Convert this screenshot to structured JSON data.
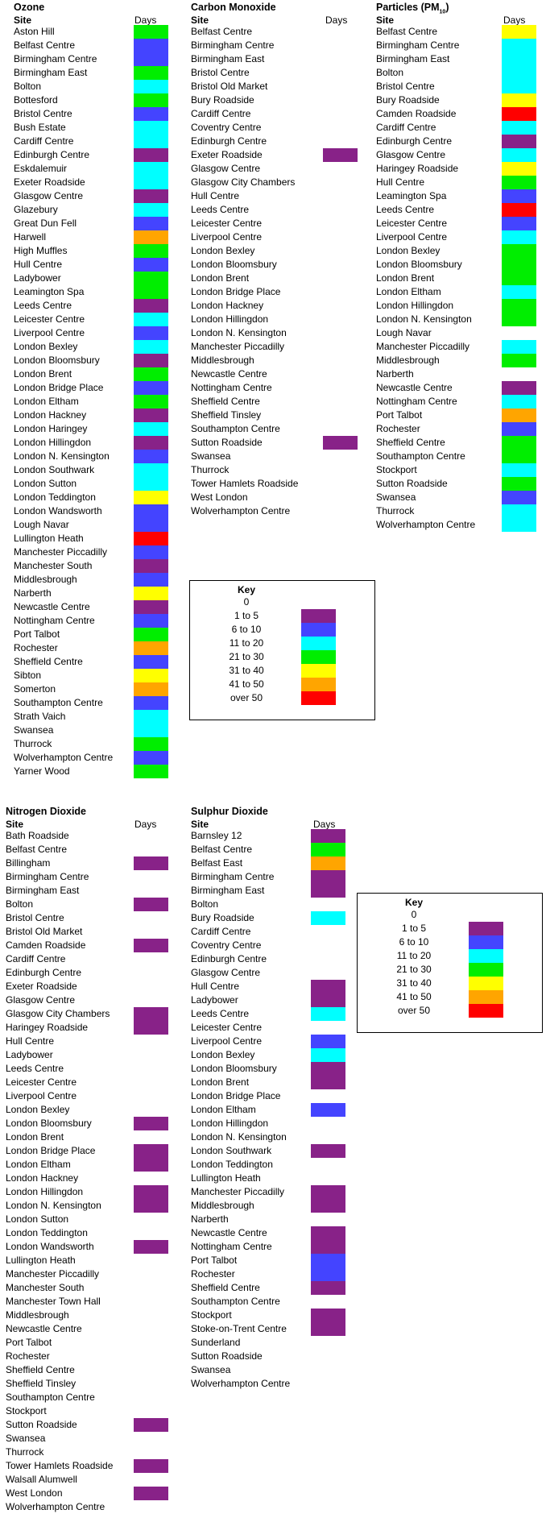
{
  "colors": {
    "0": "#ffffff",
    "1": "#882288",
    "2": "#4444ff",
    "3": "#00ffff",
    "4": "#00ee00",
    "5": "#ffff00",
    "6": "#ffa500",
    "7": "#ff0000"
  },
  "key": {
    "title": "Key",
    "items": [
      {
        "label": "0",
        "level": 0
      },
      {
        "label": "1 to 5",
        "level": 1
      },
      {
        "label": "6 to 10",
        "level": 2
      },
      {
        "label": "11 to 20",
        "level": 3
      },
      {
        "label": "21 to 30",
        "level": 4
      },
      {
        "label": "31 to 40",
        "level": 5
      },
      {
        "label": "41 to 50",
        "level": 6
      },
      {
        "label": "over 50",
        "level": 7
      }
    ]
  },
  "ozone": {
    "title": "Ozone",
    "site_header": "Site",
    "days_header": "Days",
    "rows": [
      {
        "site": "Aston Hill",
        "level": 4
      },
      {
        "site": "Belfast Centre",
        "level": 2
      },
      {
        "site": "Birmingham Centre",
        "level": 2
      },
      {
        "site": "Birmingham East",
        "level": 4
      },
      {
        "site": "Bolton",
        "level": 3
      },
      {
        "site": "Bottesford",
        "level": 4
      },
      {
        "site": "Bristol Centre",
        "level": 2
      },
      {
        "site": "Bush Estate",
        "level": 3
      },
      {
        "site": "Cardiff Centre",
        "level": 3
      },
      {
        "site": "Edinburgh Centre",
        "level": 1
      },
      {
        "site": "Eskdalemuir",
        "level": 3
      },
      {
        "site": "Exeter Roadside",
        "level": 3
      },
      {
        "site": "Glasgow Centre",
        "level": 1
      },
      {
        "site": "Glazebury",
        "level": 3
      },
      {
        "site": "Great Dun Fell",
        "level": 2
      },
      {
        "site": "Harwell",
        "level": 6
      },
      {
        "site": "High Muffles",
        "level": 4
      },
      {
        "site": "Hull Centre",
        "level": 2
      },
      {
        "site": "Ladybower",
        "level": 4
      },
      {
        "site": "Leamington Spa",
        "level": 4
      },
      {
        "site": "Leeds Centre",
        "level": 1
      },
      {
        "site": "Leicester Centre",
        "level": 3
      },
      {
        "site": "Liverpool Centre",
        "level": 2
      },
      {
        "site": "London Bexley",
        "level": 3
      },
      {
        "site": "London Bloomsbury",
        "level": 1
      },
      {
        "site": "London Brent",
        "level": 4
      },
      {
        "site": "London Bridge Place",
        "level": 2
      },
      {
        "site": "London Eltham",
        "level": 4
      },
      {
        "site": "London Hackney",
        "level": 1
      },
      {
        "site": "London Haringey",
        "level": 3
      },
      {
        "site": "London Hillingdon",
        "level": 1
      },
      {
        "site": "London N. Kensington",
        "level": 2
      },
      {
        "site": "London Southwark",
        "level": 3
      },
      {
        "site": "London Sutton",
        "level": 3
      },
      {
        "site": "London Teddington",
        "level": 5
      },
      {
        "site": "London Wandsworth",
        "level": 2
      },
      {
        "site": "Lough Navar",
        "level": 2
      },
      {
        "site": "Lullington Heath",
        "level": 7
      },
      {
        "site": "Manchester Piccadilly",
        "level": 2
      },
      {
        "site": "Manchester South",
        "level": 1
      },
      {
        "site": "Middlesbrough",
        "level": 2
      },
      {
        "site": "Narberth",
        "level": 5
      },
      {
        "site": "Newcastle Centre",
        "level": 1
      },
      {
        "site": "Nottingham Centre",
        "level": 2
      },
      {
        "site": "Port Talbot",
        "level": 4
      },
      {
        "site": "Rochester",
        "level": 6
      },
      {
        "site": "Sheffield Centre",
        "level": 2
      },
      {
        "site": "Sibton",
        "level": 5
      },
      {
        "site": "Somerton",
        "level": 6
      },
      {
        "site": "Southampton Centre",
        "level": 2
      },
      {
        "site": "Strath Vaich",
        "level": 3
      },
      {
        "site": "Swansea",
        "level": 3
      },
      {
        "site": "Thurrock",
        "level": 4
      },
      {
        "site": "Wolverhampton Centre",
        "level": 2
      },
      {
        "site": "Yarner Wood",
        "level": 4
      }
    ]
  },
  "carbon_monoxide": {
    "title": "Carbon Monoxide",
    "site_header": "Site",
    "days_header": "Days",
    "rows": [
      {
        "site": "Belfast Centre",
        "level": 0
      },
      {
        "site": "Birmingham Centre",
        "level": 0
      },
      {
        "site": "Birmingham East",
        "level": 0
      },
      {
        "site": "Bristol Centre",
        "level": 0
      },
      {
        "site": "Bristol Old Market",
        "level": 0
      },
      {
        "site": "Bury Roadside",
        "level": 0
      },
      {
        "site": "Cardiff Centre",
        "level": 0
      },
      {
        "site": "Coventry Centre",
        "level": 0
      },
      {
        "site": "Edinburgh Centre",
        "level": 0
      },
      {
        "site": "Exeter Roadside",
        "level": 1
      },
      {
        "site": "Glasgow Centre",
        "level": 0
      },
      {
        "site": "Glasgow City Chambers",
        "level": 0
      },
      {
        "site": "Hull Centre",
        "level": 0
      },
      {
        "site": "Leeds Centre",
        "level": 0
      },
      {
        "site": "Leicester Centre",
        "level": 0
      },
      {
        "site": "Liverpool Centre",
        "level": 0
      },
      {
        "site": "London Bexley",
        "level": 0
      },
      {
        "site": "London Bloomsbury",
        "level": 0
      },
      {
        "site": "London Brent",
        "level": 0
      },
      {
        "site": "London Bridge Place",
        "level": 0
      },
      {
        "site": "London Hackney",
        "level": 0
      },
      {
        "site": "London Hillingdon",
        "level": 0
      },
      {
        "site": "London N. Kensington",
        "level": 0
      },
      {
        "site": "Manchester Piccadilly",
        "level": 0
      },
      {
        "site": "Middlesbrough",
        "level": 0
      },
      {
        "site": "Newcastle Centre",
        "level": 0
      },
      {
        "site": "Nottingham Centre",
        "level": 0
      },
      {
        "site": "Sheffield Centre",
        "level": 0
      },
      {
        "site": "Sheffield Tinsley",
        "level": 0
      },
      {
        "site": "Southampton Centre",
        "level": 0
      },
      {
        "site": "Sutton Roadside",
        "level": 1
      },
      {
        "site": "Swansea",
        "level": 0
      },
      {
        "site": "Thurrock",
        "level": 0
      },
      {
        "site": "Tower Hamlets Roadside",
        "level": 0
      },
      {
        "site": "West London",
        "level": 0
      },
      {
        "site": "Wolverhampton Centre",
        "level": 0
      }
    ]
  },
  "particles": {
    "title_main": "Particles  (PM",
    "title_sub": "10",
    "title_end": ")",
    "site_header": "Site",
    "days_header": "Days",
    "rows": [
      {
        "site": "Belfast Centre",
        "level": 5
      },
      {
        "site": "Birmingham Centre",
        "level": 3
      },
      {
        "site": "Birmingham East",
        "level": 3
      },
      {
        "site": "Bolton",
        "level": 3
      },
      {
        "site": "Bristol Centre",
        "level": 3
      },
      {
        "site": "Bury Roadside",
        "level": 5
      },
      {
        "site": "Camden Roadside",
        "level": 7
      },
      {
        "site": "Cardiff Centre",
        "level": 3
      },
      {
        "site": "Edinburgh Centre",
        "level": 1
      },
      {
        "site": "Glasgow Centre",
        "level": 3
      },
      {
        "site": "Haringey Roadside",
        "level": 5
      },
      {
        "site": "Hull Centre",
        "level": 4
      },
      {
        "site": "Leamington Spa",
        "level": 2
      },
      {
        "site": "Leeds Centre",
        "level": 7
      },
      {
        "site": "Leicester Centre",
        "level": 2
      },
      {
        "site": "Liverpool Centre",
        "level": 3
      },
      {
        "site": "London Bexley",
        "level": 4
      },
      {
        "site": "London Bloomsbury",
        "level": 4
      },
      {
        "site": "London Brent",
        "level": 4
      },
      {
        "site": "London Eltham",
        "level": 3
      },
      {
        "site": "London Hillingdon",
        "level": 4
      },
      {
        "site": "London N. Kensington",
        "level": 4
      },
      {
        "site": "Lough Navar",
        "level": 0
      },
      {
        "site": "Manchester Piccadilly",
        "level": 3
      },
      {
        "site": "Middlesbrough",
        "level": 4
      },
      {
        "site": "Narberth",
        "level": 0
      },
      {
        "site": "Newcastle Centre",
        "level": 1
      },
      {
        "site": "Nottingham Centre",
        "level": 3
      },
      {
        "site": "Port Talbot",
        "level": 6
      },
      {
        "site": "Rochester",
        "level": 2
      },
      {
        "site": "Sheffield Centre",
        "level": 4
      },
      {
        "site": "Southampton Centre",
        "level": 4
      },
      {
        "site": "Stockport",
        "level": 3
      },
      {
        "site": "Sutton Roadside",
        "level": 4
      },
      {
        "site": "Swansea",
        "level": 2
      },
      {
        "site": "Thurrock",
        "level": 3
      },
      {
        "site": "Wolverhampton Centre",
        "level": 3
      }
    ]
  },
  "nitrogen_dioxide": {
    "title": "Nitrogen Dioxide",
    "site_header": "Site",
    "days_header": "Days",
    "rows": [
      {
        "site": "Bath Roadside",
        "level": 0
      },
      {
        "site": "Belfast Centre",
        "level": 0
      },
      {
        "site": "Billingham",
        "level": 1
      },
      {
        "site": "Birmingham Centre",
        "level": 0
      },
      {
        "site": "Birmingham East",
        "level": 0
      },
      {
        "site": "Bolton",
        "level": 1
      },
      {
        "site": "Bristol Centre",
        "level": 0
      },
      {
        "site": "Bristol Old Market",
        "level": 0
      },
      {
        "site": "Camden Roadside",
        "level": 1
      },
      {
        "site": "Cardiff Centre",
        "level": 0
      },
      {
        "site": "Edinburgh Centre",
        "level": 0
      },
      {
        "site": "Exeter Roadside",
        "level": 0
      },
      {
        "site": "Glasgow Centre",
        "level": 0
      },
      {
        "site": "Glasgow City Chambers",
        "level": 1
      },
      {
        "site": "Haringey Roadside",
        "level": 1
      },
      {
        "site": "Hull Centre",
        "level": 0
      },
      {
        "site": "Ladybower",
        "level": 0
      },
      {
        "site": "Leeds Centre",
        "level": 0
      },
      {
        "site": "Leicester Centre",
        "level": 0
      },
      {
        "site": "Liverpool Centre",
        "level": 0
      },
      {
        "site": "London Bexley",
        "level": 0
      },
      {
        "site": "London Bloomsbury",
        "level": 1
      },
      {
        "site": "London Brent",
        "level": 0
      },
      {
        "site": "London Bridge Place",
        "level": 1
      },
      {
        "site": "London Eltham",
        "level": 1
      },
      {
        "site": "London Hackney",
        "level": 0
      },
      {
        "site": "London Hillingdon",
        "level": 1
      },
      {
        "site": "London N. Kensington",
        "level": 1
      },
      {
        "site": "London Sutton",
        "level": 0
      },
      {
        "site": "London Teddington",
        "level": 0
      },
      {
        "site": "London Wandsworth",
        "level": 1
      },
      {
        "site": "Lullington Heath",
        "level": 0
      },
      {
        "site": "Manchester Piccadilly",
        "level": 0
      },
      {
        "site": "Manchester South",
        "level": 0
      },
      {
        "site": "Manchester Town Hall",
        "level": 0
      },
      {
        "site": "Middlesbrough",
        "level": 0
      },
      {
        "site": "Newcastle Centre",
        "level": 0
      },
      {
        "site": "Port Talbot",
        "level": 0
      },
      {
        "site": "Rochester",
        "level": 0
      },
      {
        "site": "Sheffield Centre",
        "level": 0
      },
      {
        "site": "Sheffield Tinsley",
        "level": 0
      },
      {
        "site": "Southampton Centre",
        "level": 0
      },
      {
        "site": "Stockport",
        "level": 0
      },
      {
        "site": "Sutton Roadside",
        "level": 1
      },
      {
        "site": "Swansea",
        "level": 0
      },
      {
        "site": "Thurrock",
        "level": 0
      },
      {
        "site": "Tower Hamlets Roadside",
        "level": 1
      },
      {
        "site": "Walsall Alumwell",
        "level": 0
      },
      {
        "site": "West London",
        "level": 1
      },
      {
        "site": "Wolverhampton Centre",
        "level": 0
      }
    ]
  },
  "sulphur_dioxide": {
    "title": "Sulphur Dioxide",
    "site_header": "Site",
    "days_header": "Days",
    "rows": [
      {
        "site": "Barnsley 12",
        "level": 1
      },
      {
        "site": "Belfast Centre",
        "level": 4
      },
      {
        "site": "Belfast East",
        "level": 6
      },
      {
        "site": "Birmingham Centre",
        "level": 1
      },
      {
        "site": "Birmingham East",
        "level": 1
      },
      {
        "site": "Bolton",
        "level": 0
      },
      {
        "site": "Bury Roadside",
        "level": 3
      },
      {
        "site": "Cardiff Centre",
        "level": 0
      },
      {
        "site": "Coventry Centre",
        "level": 0
      },
      {
        "site": "Edinburgh Centre",
        "level": 0
      },
      {
        "site": "Glasgow Centre",
        "level": 0
      },
      {
        "site": "Hull Centre",
        "level": 1
      },
      {
        "site": "Ladybower",
        "level": 1
      },
      {
        "site": "Leeds Centre",
        "level": 3
      },
      {
        "site": "Leicester Centre",
        "level": 0
      },
      {
        "site": "Liverpool Centre",
        "level": 2
      },
      {
        "site": "London Bexley",
        "level": 3
      },
      {
        "site": "London Bloomsbury",
        "level": 1
      },
      {
        "site": "London Brent",
        "level": 1
      },
      {
        "site": "London Bridge Place",
        "level": 0
      },
      {
        "site": "London Eltham",
        "level": 2
      },
      {
        "site": "London Hillingdon",
        "level": 0
      },
      {
        "site": "London N. Kensington",
        "level": 0
      },
      {
        "site": "London Southwark",
        "level": 1
      },
      {
        "site": "London Teddington",
        "level": 0
      },
      {
        "site": "Lullington Heath",
        "level": 0
      },
      {
        "site": "Manchester Piccadilly",
        "level": 1
      },
      {
        "site": "Middlesbrough",
        "level": 1
      },
      {
        "site": "Narberth",
        "level": 0
      },
      {
        "site": "Newcastle Centre",
        "level": 1
      },
      {
        "site": "Nottingham Centre",
        "level": 1
      },
      {
        "site": "Port Talbot",
        "level": 2
      },
      {
        "site": "Rochester",
        "level": 2
      },
      {
        "site": "Sheffield Centre",
        "level": 1
      },
      {
        "site": "Southampton Centre",
        "level": 0
      },
      {
        "site": "Stockport",
        "level": 1
      },
      {
        "site": "Stoke-on-Trent Centre",
        "level": 1
      },
      {
        "site": "Sunderland",
        "level": 0
      },
      {
        "site": "Sutton Roadside",
        "level": 0
      },
      {
        "site": "Swansea",
        "level": 0
      },
      {
        "site": "Wolverhampton Centre",
        "level": 0
      }
    ]
  }
}
